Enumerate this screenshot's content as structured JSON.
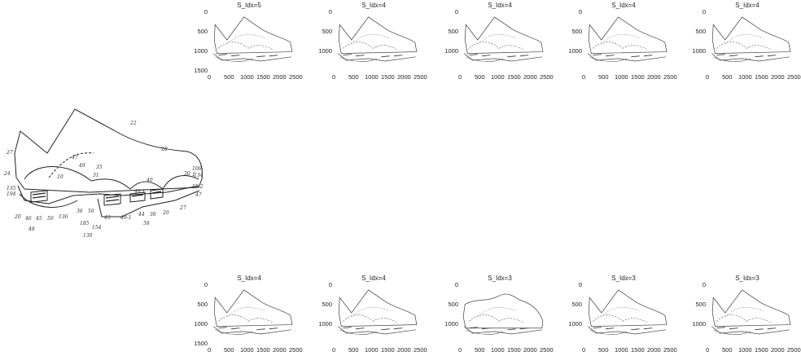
{
  "reference_drawing": {
    "labels": [
      "22",
      "27",
      "28",
      "24",
      "47",
      "49",
      "35",
      "31",
      "10",
      "30",
      "40",
      "40.1",
      "106-1",
      "134",
      "47",
      "55-2",
      "27",
      "135",
      "194",
      "20",
      "46",
      "45",
      "50",
      "136",
      "36",
      "56",
      "48",
      "185",
      "154",
      "45",
      "49-1",
      "44",
      "36",
      "58",
      "20",
      "130"
    ]
  },
  "panels": [
    {
      "title": "S_Idx=5",
      "x_ticks": [
        "0",
        "500",
        "1000",
        "1500",
        "2000",
        "2500"
      ],
      "y_ticks": [
        "0",
        "500",
        "1000",
        "1500"
      ]
    },
    {
      "title": "S_Idx=4",
      "x_ticks": [
        "0",
        "500",
        "1000",
        "1500",
        "2000",
        "2500"
      ],
      "y_ticks": [
        "0",
        "500",
        "1000"
      ]
    },
    {
      "title": "S_Idx=4",
      "x_ticks": [
        "0",
        "500",
        "1000",
        "1500",
        "2000",
        "2500"
      ],
      "y_ticks": [
        "0",
        "500",
        "1000"
      ]
    },
    {
      "title": "S_Idx=4",
      "x_ticks": [
        "0",
        "500",
        "1000",
        "1500",
        "2000",
        "2500"
      ],
      "y_ticks": [
        "0",
        "500",
        "1000"
      ]
    },
    {
      "title": "S_Idx=4",
      "x_ticks": [
        "0",
        "500",
        "1000",
        "1500",
        "2000",
        "2500"
      ],
      "y_ticks": [
        "0",
        "500",
        "1000"
      ]
    },
    {
      "title": "S_Idx=4",
      "x_ticks": [
        "0",
        "500",
        "1000",
        "1500",
        "2000",
        "2500"
      ],
      "y_ticks": [
        "0",
        "500",
        "1000",
        "1500"
      ]
    },
    {
      "title": "S_Idx=4",
      "x_ticks": [
        "0",
        "500",
        "1000",
        "1500",
        "2000",
        "2500"
      ],
      "y_ticks": [
        "0",
        "500",
        "1000"
      ]
    },
    {
      "title": "S_Idx=3",
      "x_ticks": [
        "0",
        "500",
        "1000",
        "1500",
        "2000",
        "2500"
      ],
      "y_ticks": [
        "0",
        "500",
        "1000"
      ]
    },
    {
      "title": "S_Idx=3",
      "x_ticks": [
        "0",
        "500",
        "1000",
        "1500",
        "2000",
        "2500"
      ],
      "y_ticks": [
        "0",
        "500",
        "1000"
      ]
    },
    {
      "title": "S_Idx=3",
      "x_ticks": [
        "0",
        "500",
        "1000",
        "1500",
        "2000",
        "2500"
      ],
      "y_ticks": [
        "0",
        "500",
        "1000"
      ]
    }
  ]
}
